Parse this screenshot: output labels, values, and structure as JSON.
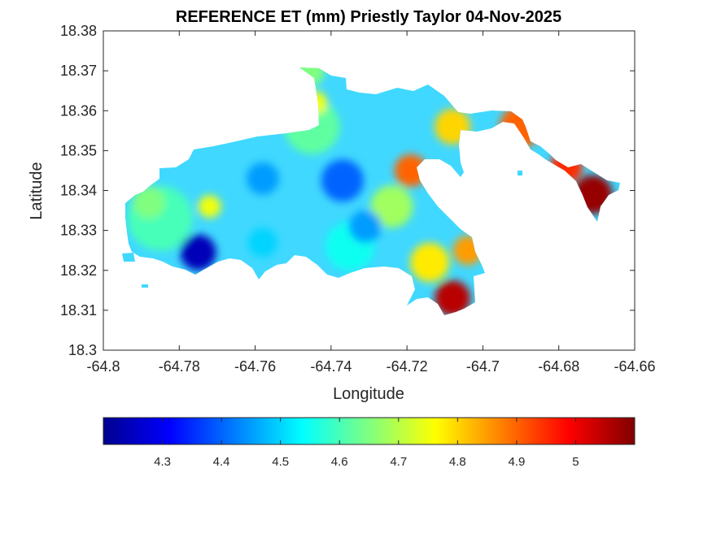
{
  "chart_data": {
    "type": "heatmap",
    "title": "REFERENCE ET (mm) Priestly Taylor 04-Nov-2025",
    "xlabel": "Longitude",
    "ylabel": "Latitude",
    "xlim": [
      -64.8,
      -64.66
    ],
    "ylim": [
      18.3,
      18.38
    ],
    "xticks": [
      -64.8,
      -64.78,
      -64.76,
      -64.74,
      -64.72,
      -64.7,
      -64.68,
      -64.66
    ],
    "yticks": [
      18.3,
      18.31,
      18.32,
      18.33,
      18.34,
      18.35,
      18.36,
      18.37,
      18.38
    ],
    "grid": false,
    "colormap": "jet",
    "colorbar": {
      "location": "bottom",
      "limits": [
        4.2,
        5.1
      ],
      "ticks": [
        4.3,
        4.4,
        4.5,
        4.6,
        4.7,
        4.8,
        4.9,
        5
      ],
      "tick_labels": [
        "4.3",
        "4.4",
        "4.5",
        "4.6",
        "4.7",
        "4.8",
        "4.9",
        "5"
      ]
    },
    "region_values": [
      {
        "lon": -64.775,
        "lat": 18.3245,
        "value": 4.25
      },
      {
        "lon": -64.737,
        "lat": 18.3425,
        "value": 4.4
      },
      {
        "lon": -64.731,
        "lat": 18.331,
        "value": 4.45
      },
      {
        "lon": -64.758,
        "lat": 18.343,
        "value": 4.45
      },
      {
        "lon": -64.758,
        "lat": 18.327,
        "value": 4.5
      },
      {
        "lon": -64.788,
        "lat": 18.337,
        "value": 4.65
      },
      {
        "lon": -64.772,
        "lat": 18.336,
        "value": 4.75
      },
      {
        "lon": -64.744,
        "lat": 18.362,
        "value": 4.75
      },
      {
        "lon": -64.746,
        "lat": 18.37,
        "value": 4.65
      },
      {
        "lon": -64.719,
        "lat": 18.345,
        "value": 4.9
      },
      {
        "lon": -64.708,
        "lat": 18.313,
        "value": 5.05
      },
      {
        "lon": -64.704,
        "lat": 18.325,
        "value": 4.85
      },
      {
        "lon": -64.671,
        "lat": 18.339,
        "value": 5.08
      }
    ]
  }
}
